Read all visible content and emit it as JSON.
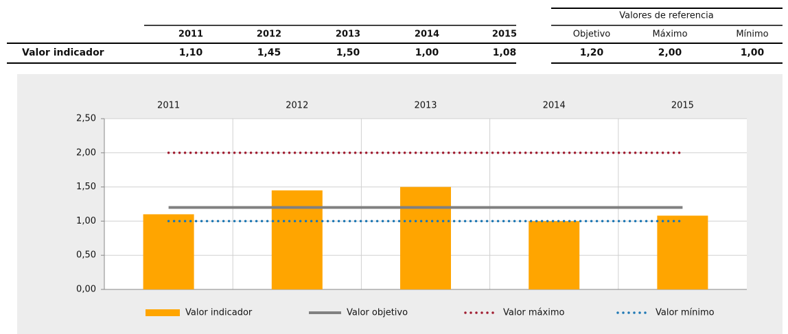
{
  "table": {
    "reference_title": "Valores de referencia",
    "years": [
      "2011",
      "2012",
      "2013",
      "2014",
      "2015"
    ],
    "reference_headers": [
      "Objetivo",
      "Máximo",
      "Mínimo"
    ],
    "row_label": "Valor indicador",
    "year_values": [
      "1,10",
      "1,45",
      "1,50",
      "1,00",
      "1,08"
    ],
    "reference_values": [
      "1,20",
      "2,00",
      "1,00"
    ]
  },
  "chart_data": {
    "type": "bar",
    "categories": [
      "2011",
      "2012",
      "2013",
      "2014",
      "2015"
    ],
    "series": [
      {
        "name": "Valor indicador",
        "type": "bar",
        "color": "#ffa500",
        "values": [
          1.1,
          1.45,
          1.5,
          1.0,
          1.08
        ]
      },
      {
        "name": "Valor objetivo",
        "type": "line",
        "style": "solid",
        "color": "#808080",
        "values": [
          1.2,
          1.2,
          1.2,
          1.2,
          1.2
        ]
      },
      {
        "name": "Valor máximo",
        "type": "line",
        "style": "dotted",
        "color": "#a01c30",
        "values": [
          2.0,
          2.0,
          2.0,
          2.0,
          2.0
        ]
      },
      {
        "name": "Valor mínimo",
        "type": "line",
        "style": "dotted",
        "color": "#1f78b4",
        "values": [
          1.0,
          1.0,
          1.0,
          1.0,
          1.0
        ]
      }
    ],
    "ylim": [
      0,
      2.5
    ],
    "yticks": [
      {
        "value": 0,
        "label": "0,00"
      },
      {
        "value": 0.5,
        "label": "0,50"
      },
      {
        "value": 1,
        "label": "1,00"
      },
      {
        "value": 1.5,
        "label": "1,50"
      },
      {
        "value": 2,
        "label": "2,00"
      },
      {
        "value": 2.5,
        "label": "2,50"
      }
    ],
    "grid": true,
    "legend": "bottom"
  }
}
